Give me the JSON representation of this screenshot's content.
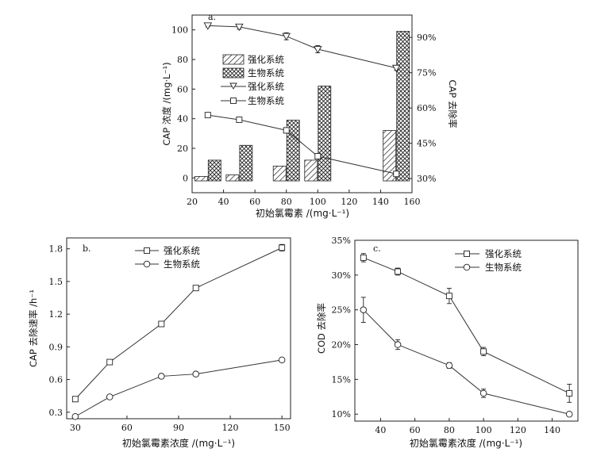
{
  "chart_data": [
    {
      "type": "bar+line",
      "panel_label": "a.",
      "xlabel": "初始氯霉素 /(mg·L⁻¹)",
      "ylabel": "CAP 浓度 /(mg·L⁻¹)",
      "y2label": "CAP 去除率",
      "xlim": [
        20,
        160
      ],
      "ylim": [
        -10,
        110
      ],
      "y2lim": [
        24,
        99.5
      ],
      "xticks": [
        "20",
        "40",
        "60",
        "80",
        "100",
        "120",
        "140",
        "160"
      ],
      "yticks": [
        "0",
        "20",
        "40",
        "60",
        "80",
        "100"
      ],
      "y2ticks": [
        "30%",
        "45%",
        "60%",
        "75%",
        "90%"
      ],
      "categories": [
        30,
        50,
        80,
        100,
        150
      ],
      "bar_series": [
        {
          "name": "强化系统",
          "pattern": "hatch",
          "values": [
            1,
            2,
            8,
            12,
            32
          ]
        },
        {
          "name": "生物系统",
          "pattern": "cross",
          "values": [
            12,
            22,
            39,
            62,
            99
          ]
        }
      ],
      "line_series": [
        {
          "name": "强化系统",
          "marker": "triangle-down",
          "axis": "right",
          "x": [
            30,
            50,
            80,
            100,
            150
          ],
          "y": [
            95,
            94.5,
            90.5,
            85,
            77
          ],
          "error": [
            0.5,
            1,
            1.5,
            1.5,
            1
          ]
        },
        {
          "name": "生物系统",
          "marker": "square",
          "axis": "right",
          "x": [
            30,
            50,
            80,
            100,
            150
          ],
          "y": [
            57,
            55,
            50.5,
            39.5,
            32
          ],
          "error": [
            0,
            0,
            0,
            0,
            0
          ]
        }
      ],
      "legend_labels": [
        "强化系统",
        "生物系统",
        "强化系统",
        "生物系统"
      ]
    },
    {
      "type": "line",
      "panel_label": "b.",
      "xlabel": "初始氯霉素浓度 /(mg·L⁻¹)",
      "ylabel": "CAP 去除速率 /h⁻¹",
      "xlim": [
        25,
        155
      ],
      "ylim": [
        0.24,
        1.9
      ],
      "xticks": [
        "30",
        "60",
        "90",
        "120",
        "150"
      ],
      "yticks": [
        "0.3",
        "0.6",
        "0.9",
        "1.2",
        "1.5",
        "1.8"
      ],
      "series": [
        {
          "name": "强化系统",
          "marker": "square",
          "x": [
            30,
            50,
            80,
            100,
            150
          ],
          "y": [
            0.42,
            0.76,
            1.11,
            1.44,
            1.81
          ],
          "error": [
            0,
            0.02,
            0.01,
            0,
            0.03
          ]
        },
        {
          "name": "生物系统",
          "marker": "circle",
          "x": [
            30,
            50,
            80,
            100,
            150
          ],
          "y": [
            0.26,
            0.44,
            0.63,
            0.65,
            0.78
          ],
          "error": [
            0,
            0,
            0,
            0,
            0
          ]
        }
      ]
    },
    {
      "type": "line",
      "panel_label": "c.",
      "xlabel": "初始氯霉素浓度 /(mg·L⁻¹)",
      "ylabel": "COD 去除率",
      "xlim": [
        25,
        155
      ],
      "ylim": [
        9,
        35
      ],
      "xticks": [
        "40",
        "60",
        "80",
        "100",
        "120",
        "140"
      ],
      "yticks": [
        "10%",
        "15%",
        "20%",
        "25%",
        "30%",
        "35%"
      ],
      "series": [
        {
          "name": "强化系统",
          "marker": "square",
          "x": [
            30,
            50,
            80,
            100,
            150
          ],
          "y": [
            32.5,
            30.5,
            27,
            19,
            13
          ],
          "error": [
            0.6,
            0.5,
            1.1,
            0.6,
            1.3
          ]
        },
        {
          "name": "生物系统",
          "marker": "circle",
          "x": [
            30,
            50,
            80,
            100,
            150
          ],
          "y": [
            25,
            20,
            17,
            13,
            10
          ],
          "error": [
            1.8,
            0.7,
            0.4,
            0.6,
            0
          ]
        }
      ]
    }
  ]
}
